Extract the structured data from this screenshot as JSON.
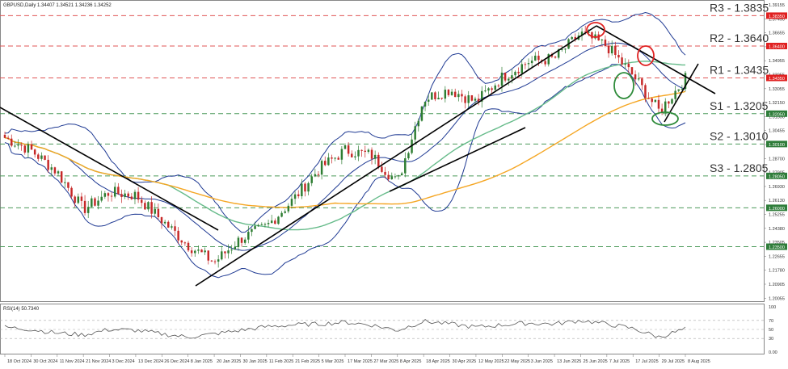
{
  "header": {
    "symbol_line": "GBPUSD,Daily  1.34407 1.34521 1.34236 1.34252",
    "rsi_line": "RSI(14) 50.7340"
  },
  "colors": {
    "bull": "#2e7d32",
    "bear": "#c62828",
    "bands": "#1f3a93",
    "ma_green": "#66bb8a",
    "ma_orange": "#f5a623",
    "level_red": "#e05555",
    "level_green": "#4c9a5a",
    "trend": "#000000",
    "rsi": "#555555"
  },
  "levels": [
    {
      "name": "R3",
      "text": "R3 - 1.3835",
      "value": 1.3835,
      "color": "red",
      "axis_tag": "1.38350"
    },
    {
      "name": "R2",
      "text": "R2 - 1.3640",
      "value": 1.364,
      "color": "red",
      "axis_tag": "1.36400"
    },
    {
      "name": "R1",
      "text": "R1 - 1.3435",
      "value": 1.3435,
      "color": "red",
      "axis_tag": "1.34350"
    },
    {
      "name": "S1",
      "text": "S1 - 1.3205",
      "value": 1.3205,
      "color": "green",
      "axis_tag": "1.32050"
    },
    {
      "name": "S2",
      "text": "S2 - 1.3010",
      "value": 1.301,
      "color": "green",
      "axis_tag": "1.30100"
    },
    {
      "name": "S3",
      "text": "S3 - 1.2805",
      "value": 1.2805,
      "color": "green",
      "axis_tag": "1.28050"
    },
    {
      "name": "L5",
      "text": "",
      "value": 1.26,
      "color": "green",
      "axis_tag": "1.26000"
    },
    {
      "name": "L6",
      "text": "",
      "value": 1.235,
      "color": "green",
      "axis_tag": "1.23500"
    }
  ],
  "y_ticks": [
    "1.39155",
    "1.37490",
    "1.36655",
    "1.35805",
    "1.34955",
    "1.33955",
    "1.33055",
    "1.32150",
    "1.31330",
    "1.30455",
    "1.29580",
    "1.28700",
    "1.27905",
    "1.26930",
    "1.26130",
    "1.25255",
    "1.24380",
    "1.23505",
    "1.22655",
    "1.21780",
    "1.20905",
    "1.20055"
  ],
  "rsi_ticks": [
    "100",
    "70",
    "50",
    "30",
    "0.00"
  ],
  "x_labels": [
    "18 Oct 2024",
    "30 Oct 2024",
    "11 Nov 2024",
    "21 Nov 2024",
    "3 Dec 2024",
    "13 Dec 2024",
    "26 Dec 2024",
    "8 Jan 2025",
    "20 Jan 2025",
    "30 Jan 2025",
    "11 Feb 2025",
    "21 Feb 2025",
    "5 Mar 2025",
    "17 Mar 2025",
    "27 Mar 2025",
    "8 Apr 2025",
    "18 Apr 2025",
    "30 Apr 2025",
    "12 May 2025",
    "22 May 2025",
    "3 Jun 2025",
    "13 Jun 2025",
    "25 Jun 2025",
    "7 Jul 2025",
    "17 Jul 2025",
    "29 Jul 2025",
    "8 Aug 2025"
  ],
  "chart_data": {
    "type": "candlestick",
    "symbol": "GBPUSD",
    "timeframe": "Daily",
    "ohlc_last": {
      "open": 1.34407,
      "high": 1.34521,
      "low": 1.34236,
      "close": 1.34252
    },
    "ylim": [
      1.2005,
      1.3925
    ],
    "close_path": [
      [
        "18 Oct 2024",
        1.305
      ],
      [
        "30 Oct 2024",
        1.297
      ],
      [
        "11 Nov 2024",
        1.283
      ],
      [
        "21 Nov 2024",
        1.259
      ],
      [
        "3 Dec 2024",
        1.27
      ],
      [
        "13 Dec 2024",
        1.268
      ],
      [
        "26 Dec 2024",
        1.252
      ],
      [
        "8 Jan 2025",
        1.236
      ],
      [
        "20 Jan 2025",
        1.225
      ],
      [
        "30 Jan 2025",
        1.24
      ],
      [
        "11 Feb 2025",
        1.248
      ],
      [
        "21 Feb 2025",
        1.265
      ],
      [
        "5 Mar 2025",
        1.285
      ],
      [
        "17 Mar 2025",
        1.297
      ],
      [
        "27 Mar 2025",
        1.294
      ],
      [
        "8 Apr 2025",
        1.276
      ],
      [
        "18 Apr 2025",
        1.33
      ],
      [
        "30 Apr 2025",
        1.336
      ],
      [
        "12 May 2025",
        1.328
      ],
      [
        "22 May 2025",
        1.344
      ],
      [
        "3 Jun 2025",
        1.354
      ],
      [
        "13 Jun 2025",
        1.356
      ],
      [
        "25 Jun 2025",
        1.372
      ],
      [
        "7 Jul 2025",
        1.364
      ],
      [
        "17 Jul 2025",
        1.345
      ],
      [
        "29 Jul 2025",
        1.322
      ],
      [
        "8 Aug 2025",
        1.343
      ]
    ],
    "rsi_ylim": [
      0,
      100
    ],
    "rsi_values": [
      55,
      50,
      42,
      38,
      50,
      48,
      40,
      33,
      40,
      48,
      56,
      60,
      62,
      66,
      60,
      48,
      68,
      62,
      55,
      60,
      64,
      62,
      70,
      62,
      52,
      33,
      51
    ]
  }
}
